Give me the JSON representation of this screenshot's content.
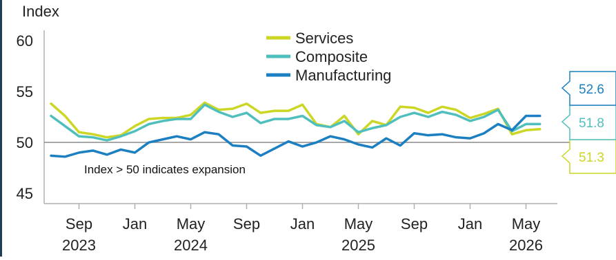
{
  "chart_data": {
    "type": "line",
    "ylabel": "Index",
    "ylim": [
      44,
      61
    ],
    "yticks": [
      45,
      50,
      55,
      60
    ],
    "x_ticks": [
      {
        "month": "Sep",
        "year": "2023",
        "date": "2023-09"
      },
      {
        "month": "Jan",
        "year": "",
        "date": "2024-01"
      },
      {
        "month": "May",
        "year": "2024",
        "date": "2024-05"
      },
      {
        "month": "Sep",
        "year": "",
        "date": "2024-09"
      },
      {
        "month": "Jan",
        "year": "",
        "date": "2025-01"
      },
      {
        "month": "May",
        "year": "2025",
        "date": "2025-05"
      },
      {
        "month": "Sep",
        "year": "",
        "date": "2025-09"
      },
      {
        "month": "Jan",
        "year": "",
        "date": "2026-01"
      },
      {
        "month": "May",
        "year": "2026",
        "date": "2026-05"
      }
    ],
    "x": [
      "2023-07",
      "2023-08",
      "2023-09",
      "2023-10",
      "2023-11",
      "2023-12",
      "2024-01",
      "2024-02",
      "2024-03",
      "2024-04",
      "2024-05",
      "2024-06",
      "2024-07",
      "2024-08",
      "2024-09",
      "2024-10",
      "2024-11",
      "2024-12",
      "2025-01",
      "2025-02",
      "2025-03",
      "2025-04",
      "2025-05",
      "2025-06",
      "2025-07",
      "2025-08",
      "2025-09",
      "2025-10",
      "2025-11",
      "2025-12",
      "2026-01",
      "2026-02",
      "2026-03",
      "2026-04",
      "2026-05",
      "2026-06"
    ],
    "reference_line": {
      "y": 50,
      "label": "Index > 50 indicates expansion"
    },
    "legend_placement": "top-center",
    "series": [
      {
        "name": "Services",
        "color": "#ccd624",
        "values": [
          53.8,
          52.6,
          51.0,
          50.8,
          50.5,
          50.7,
          51.6,
          52.3,
          52.4,
          52.4,
          52.7,
          53.9,
          53.2,
          53.3,
          53.8,
          52.9,
          53.1,
          53.1,
          53.7,
          51.8,
          51.5,
          52.6,
          50.8,
          52.1,
          51.7,
          53.5,
          53.4,
          52.9,
          53.5,
          53.2,
          52.4,
          52.8,
          53.3,
          50.8,
          51.2,
          51.3
        ],
        "end_label": "51.3"
      },
      {
        "name": "Composite",
        "color": "#4fbfbe",
        "values": [
          52.6,
          51.6,
          50.6,
          50.5,
          50.2,
          50.6,
          51.1,
          51.8,
          52.1,
          52.3,
          52.3,
          53.7,
          53.0,
          52.5,
          52.9,
          51.9,
          52.3,
          52.3,
          52.6,
          51.7,
          51.5,
          52.1,
          51.0,
          51.4,
          51.7,
          52.5,
          52.9,
          52.5,
          53.0,
          52.7,
          52.1,
          52.5,
          53.2,
          51.1,
          51.8,
          51.8
        ],
        "end_label": "51.8"
      },
      {
        "name": "Manufacturing",
        "color": "#1b7fc1",
        "values": [
          48.7,
          48.6,
          49.0,
          49.2,
          48.8,
          49.3,
          49.0,
          50.0,
          50.3,
          50.6,
          50.3,
          51.0,
          50.8,
          49.7,
          49.6,
          48.7,
          49.4,
          50.1,
          49.6,
          50.0,
          50.6,
          50.3,
          49.8,
          49.5,
          50.4,
          49.7,
          50.9,
          50.7,
          50.8,
          50.5,
          50.4,
          50.9,
          51.8,
          51.2,
          52.6,
          52.6
        ],
        "end_label": "52.6"
      }
    ]
  }
}
